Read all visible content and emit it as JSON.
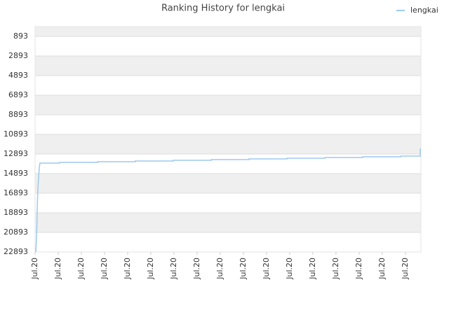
{
  "chart_data": {
    "type": "line",
    "title": "Ranking History for lengkai",
    "invert_y": true,
    "grid": true,
    "legend": "top-right",
    "xlim": [
      0,
      16.67
    ],
    "ylim": [
      22893,
      -107
    ],
    "xticks": [
      {
        "value": 0,
        "label": "Jul.20"
      },
      {
        "value": 1,
        "label": "Jul.20"
      },
      {
        "value": 2,
        "label": "Jul.20"
      },
      {
        "value": 3,
        "label": "Jul.20"
      },
      {
        "value": 4,
        "label": "Jul.20"
      },
      {
        "value": 5,
        "label": "Jul.20"
      },
      {
        "value": 6,
        "label": "Jul.20"
      },
      {
        "value": 7,
        "label": "Jul.20"
      },
      {
        "value": 8,
        "label": "Jul.20"
      },
      {
        "value": 9,
        "label": "Jul.20"
      },
      {
        "value": 10,
        "label": "Jul.20"
      },
      {
        "value": 11,
        "label": "Jul.20"
      },
      {
        "value": 12,
        "label": "Jul.20"
      },
      {
        "value": 13,
        "label": "Jul.20"
      },
      {
        "value": 14,
        "label": "Jul.20"
      },
      {
        "value": 15,
        "label": "Jul.20"
      },
      {
        "value": 16,
        "label": "Jul.20"
      }
    ],
    "yticks": [
      893,
      2893,
      4893,
      6893,
      8893,
      10893,
      12893,
      14893,
      16893,
      18893,
      20893,
      22893
    ],
    "x": [
      0.03,
      0.06,
      0.08,
      0.09,
      0.12,
      0.15,
      0.18,
      0.21,
      1.06,
      1.06,
      2.7,
      2.7,
      4.33,
      4.33,
      5.97,
      5.97,
      7.61,
      7.61,
      9.24,
      9.24,
      10.88,
      10.88,
      12.52,
      12.52,
      14.15,
      14.15,
      15.79,
      15.79,
      16.64,
      16.64
    ],
    "series": [
      {
        "name": "lengkai",
        "color": "#9ec9ee",
        "values": [
          22893,
          21464,
          20036,
          18607,
          16464,
          15393,
          14322,
          13822,
          13822,
          13750,
          13750,
          13679,
          13679,
          13607,
          13607,
          13536,
          13536,
          13464,
          13464,
          13393,
          13393,
          13322,
          13322,
          13250,
          13250,
          13179,
          13179,
          13107,
          13107,
          12322
        ]
      }
    ]
  }
}
